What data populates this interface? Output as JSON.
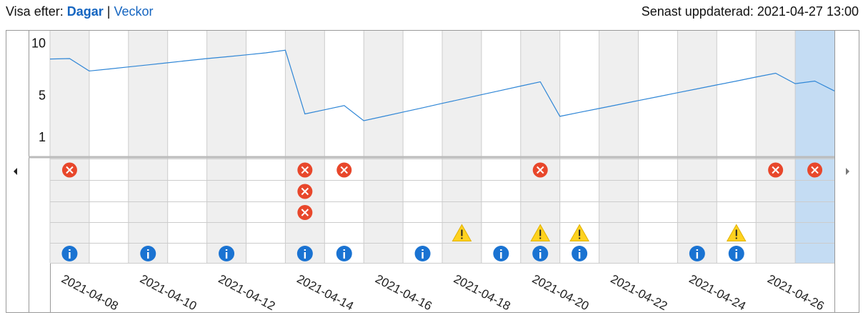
{
  "header": {
    "view_label": "Visa efter:",
    "view_active": "Dagar",
    "separator": "|",
    "view_other": "Veckor",
    "updated": "Senast uppdaterad: 2021-04-27 13:00"
  },
  "chart_data": {
    "type": "line",
    "series": [
      {
        "color": "#2f86d6",
        "values": [
          8.56,
          8.6,
          7.41,
          7.6,
          7.8,
          8.0,
          8.2,
          8.4,
          8.6,
          8.77,
          8.96,
          9.15,
          9.4,
          3.3,
          3.7,
          4.1,
          2.65,
          3.06,
          3.48,
          3.89,
          4.31,
          4.72,
          5.14,
          5.55,
          5.97,
          6.38,
          3.07,
          3.45,
          3.82,
          4.2,
          4.58,
          4.95,
          5.33,
          5.7,
          6.08,
          6.45,
          6.83,
          7.2,
          6.2,
          6.45,
          5.5
        ]
      }
    ],
    "ylim": [
      -0.7,
      11.2
    ],
    "yticks": [
      1,
      5,
      10
    ],
    "x_labels": [
      "2021-04-08",
      "2021-04-10",
      "2021-04-12",
      "2021-04-14",
      "2021-04-16",
      "2021-04-18",
      "2021-04-20",
      "2021-04-22",
      "2021-04-24",
      "2021-04-26"
    ],
    "event_rows": [
      {
        "kind": "error",
        "days": [
          0,
          6,
          7,
          12,
          18,
          19
        ]
      },
      {
        "kind": "error",
        "days": [
          6
        ]
      },
      {
        "kind": "error",
        "days": [
          6
        ]
      },
      {
        "kind": "warning",
        "days": [
          10,
          12,
          13,
          17
        ]
      },
      {
        "kind": "info",
        "days": [
          0,
          2,
          4,
          6,
          7,
          9,
          11,
          12,
          13,
          16,
          17
        ]
      }
    ]
  }
}
